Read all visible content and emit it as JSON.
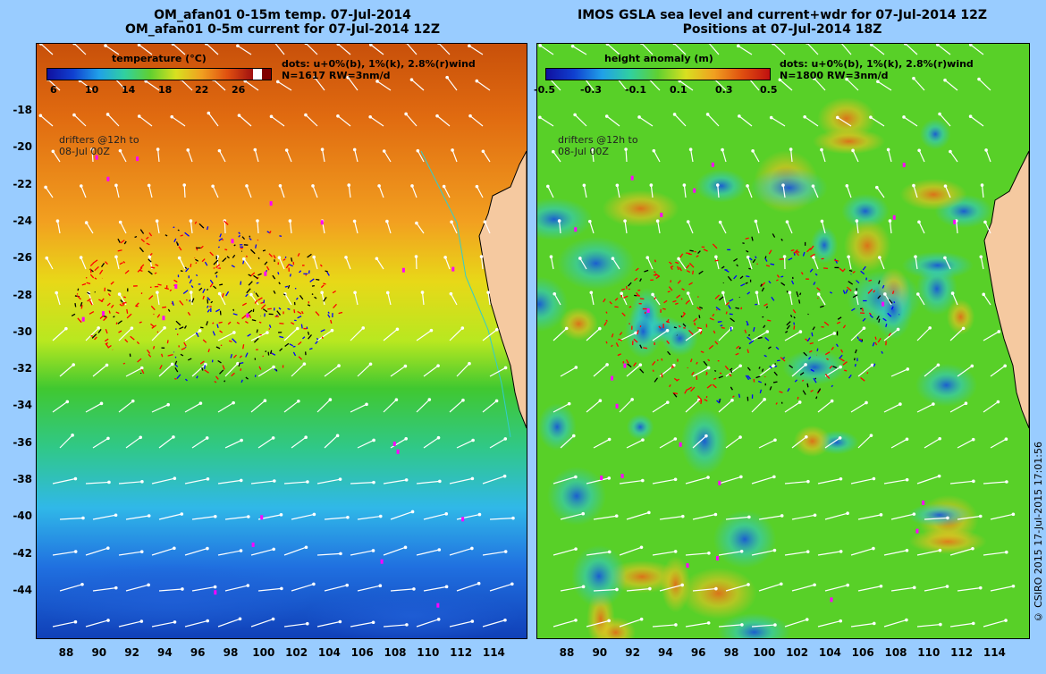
{
  "left_panel": {
    "title_line1": "OM_afan01 0-15m temp. 07-Jul-2014",
    "title_line2": "OM_afan01 0-5m current for 07-Jul-2014 12Z",
    "legend_title": "temperature (°C)",
    "legend_ticks": [
      "6",
      "10",
      "14",
      "18",
      "22",
      "26"
    ],
    "info_line1": "dots: u+0%(b), 1%(k), 2.8%(r)wind",
    "info_line2": "N=1617  RW=3nm/d",
    "drifters_line1": "drifters @12h to",
    "drifters_line2": "08-Jul 00Z"
  },
  "right_panel": {
    "title_line1": "IMOS GSLA sea level and current+wdr for 07-Jul-2014 12Z",
    "title_line2": "Positions at 07-Jul-2014 18Z",
    "legend_title": "height anomaly  (m)",
    "legend_ticks": [
      "-0.5",
      "-0.3",
      "-0.1",
      "0.1",
      "0.3",
      "0.5"
    ],
    "info_line1": "dots: u+0%(b), 1%(k), 2.8%(r)wind",
    "info_line2": "N=1800  RW=3nm/d",
    "drifters_line1": "drifters @12h to",
    "drifters_line2": "08-Jul 00Z"
  },
  "y_axis_labels": [
    "-18",
    "-20",
    "-22",
    "-24",
    "-26",
    "-28",
    "-30",
    "-32",
    "-34",
    "-36",
    "-38",
    "-40",
    "-42",
    "-44"
  ],
  "x_axis_labels": [
    "88",
    "90",
    "92",
    "94",
    "96",
    "98",
    "100",
    "102",
    "104",
    "106",
    "108",
    "110",
    "112",
    "114"
  ],
  "copyright": "© CSIRO 2015   17-Jul-2015 17:01:56",
  "colors": {
    "background": "#99ccff",
    "land": "#f5c9a0",
    "coast": "#33cccc",
    "drifter_red": "#ff0000",
    "drifter_black": "#000000",
    "drifter_blue": "#0000ff",
    "drifter_magenta": "#ff00ff"
  }
}
